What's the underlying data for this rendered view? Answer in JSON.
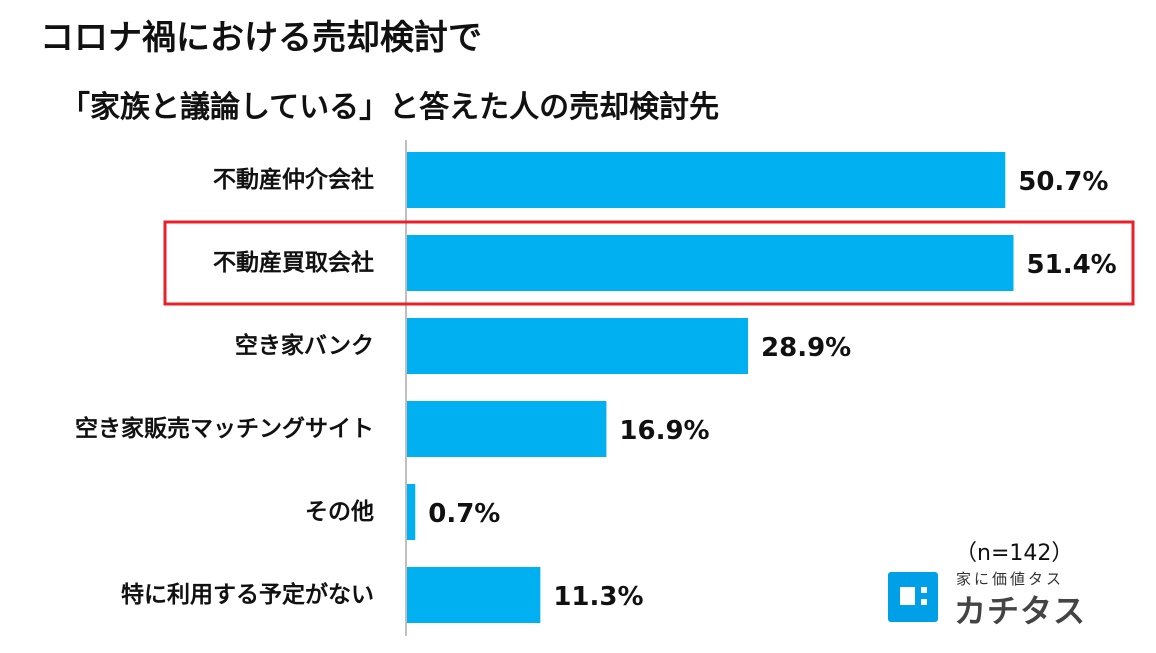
{
  "title_line1": "コロナ禍における売却検討で",
  "title_line2": "「家族と議論している」と答えた人の売却検討先",
  "sample_note": "（n=142）",
  "logo": {
    "tagline": "家に価値タス",
    "name": "カチタス",
    "icon": "kachitasu-logo-icon",
    "color": "#00A0E9"
  },
  "colors": {
    "bar": "#00B0F0",
    "highlight": "#E8202A",
    "axis": "#BFBFBF"
  },
  "chart_data": {
    "type": "bar",
    "orientation": "horizontal",
    "categories": [
      "不動産仲介会社",
      "不動産買取会社",
      "空き家バンク",
      "空き家販売マッチングサイト",
      "その他",
      "特に利用する予定がない"
    ],
    "values": [
      50.7,
      51.4,
      28.9,
      16.9,
      0.7,
      11.3
    ],
    "value_labels": [
      "50.7%",
      "51.4%",
      "28.9%",
      "16.9%",
      "0.7%",
      "11.3%"
    ],
    "unit": "%",
    "highlighted_category": "不動産買取会社",
    "grid": false,
    "legend": "none"
  }
}
